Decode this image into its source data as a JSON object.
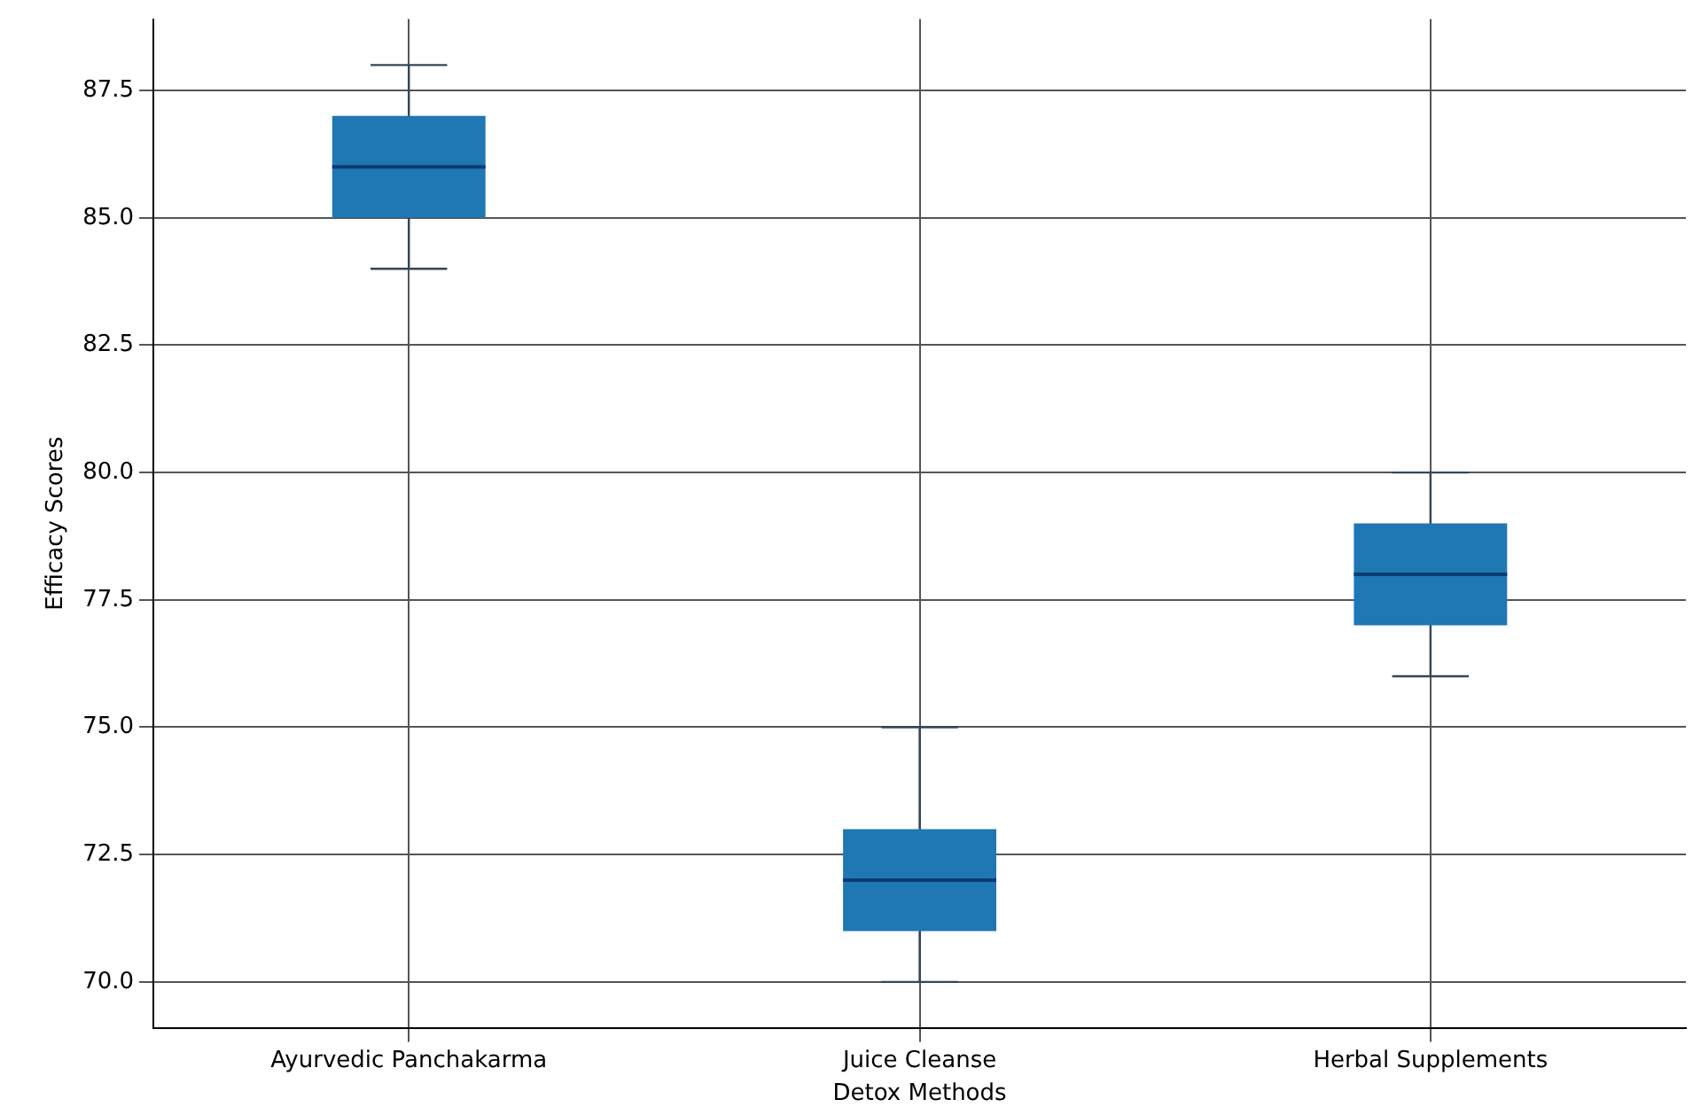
{
  "chart_data": {
    "type": "box",
    "xlabel": "Detox Methods",
    "ylabel": "Efficacy Scores",
    "categories": [
      "Ayurvedic Panchakarma",
      "Juice Cleanse",
      "Herbal Supplements"
    ],
    "boxes": [
      {
        "low": 84,
        "q1": 85,
        "median": 86,
        "q3": 87,
        "high": 88
      },
      {
        "low": 70,
        "q1": 71,
        "median": 72,
        "q3": 73,
        "high": 75
      },
      {
        "low": 76,
        "q1": 77,
        "median": 78,
        "q3": 79,
        "high": 80
      }
    ],
    "color": "#1f77b4",
    "ylim": [
      69.1,
      88.9
    ],
    "yticks": [
      {
        "value": 70,
        "label": "70.0"
      },
      {
        "value": 72.5,
        "label": "72.5"
      },
      {
        "value": 75,
        "label": "75.0"
      },
      {
        "value": 77.5,
        "label": "77.5"
      },
      {
        "value": 80,
        "label": "80.0"
      },
      {
        "value": 82.5,
        "label": "82.5"
      },
      {
        "value": 85,
        "label": "85.0"
      },
      {
        "value": 87.5,
        "label": "87.5"
      }
    ],
    "grid": true
  }
}
